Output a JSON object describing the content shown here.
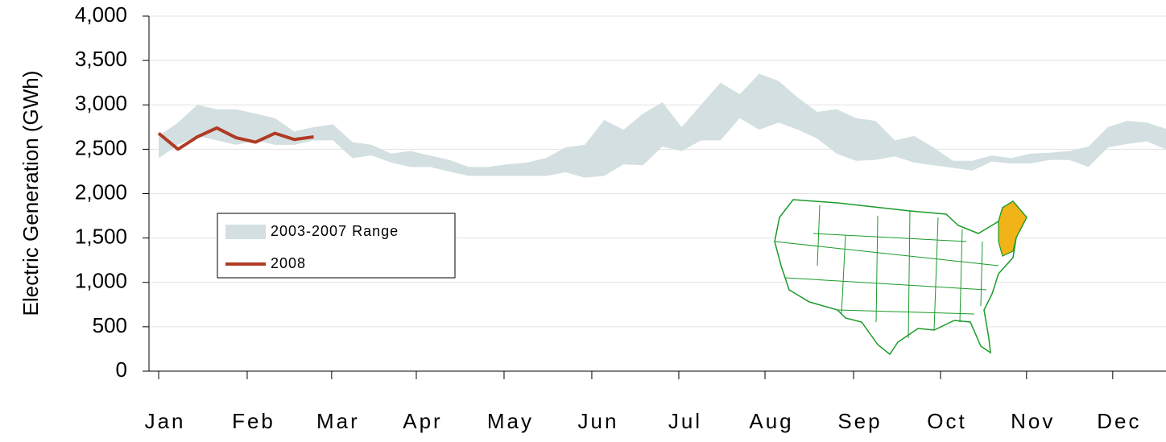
{
  "chart_data": {
    "type": "range-line",
    "y_label": "Electric Generation (GWh)",
    "x": [
      0,
      1,
      2,
      3,
      4,
      5,
      6,
      7,
      8,
      9,
      10,
      11,
      12,
      13,
      14,
      15,
      16,
      17,
      18,
      19,
      20,
      21,
      22,
      23,
      24,
      25,
      26,
      27,
      28,
      29,
      30,
      31,
      32,
      33,
      34,
      35,
      36,
      37,
      38,
      39,
      40,
      41,
      42,
      43,
      44,
      45,
      46,
      47,
      48,
      49,
      50,
      51,
      52
    ],
    "xlim": [
      -0.5,
      52
    ],
    "xticks": [
      {
        "value": 0,
        "label": "Jan"
      },
      {
        "value": 4.57,
        "label": "Feb"
      },
      {
        "value": 8.93,
        "label": "Mar"
      },
      {
        "value": 13.3,
        "label": "Apr"
      },
      {
        "value": 17.83,
        "label": "May"
      },
      {
        "value": 22.36,
        "label": "Jun"
      },
      {
        "value": 26.85,
        "label": "Jul"
      },
      {
        "value": 31.3,
        "label": "Aug"
      },
      {
        "value": 35.87,
        "label": "Sep"
      },
      {
        "value": 40.36,
        "label": "Oct"
      },
      {
        "value": 44.8,
        "label": "Nov"
      },
      {
        "value": 49.25,
        "label": "Dec"
      }
    ],
    "ylim": [
      0,
      4000
    ],
    "yticks": [
      0,
      500,
      {
        "value": 1000,
        "label": "1,000"
      },
      {
        "value": 1500,
        "label": "1,500"
      },
      {
        "value": 2000,
        "label": "2,000"
      },
      {
        "value": 2500,
        "label": "2,500"
      },
      {
        "value": 3000,
        "label": "3,000"
      },
      {
        "value": 3500,
        "label": "3,500"
      },
      {
        "value": 4000,
        "label": "4,000"
      }
    ],
    "grid": true,
    "series": [
      {
        "name": "2003-2007 Range",
        "type": "range",
        "color": "#d3dfe0",
        "high": [
          2650,
          2800,
          3000,
          2950,
          2950,
          2900,
          2850,
          2700,
          2750,
          2780,
          2580,
          2550,
          2450,
          2480,
          2430,
          2380,
          2300,
          2300,
          2330,
          2350,
          2400,
          2520,
          2550,
          2830,
          2720,
          2900,
          3030,
          2750,
          3000,
          3250,
          3120,
          3350,
          3270,
          3080,
          2920,
          2950,
          2850,
          2820,
          2600,
          2650,
          2520,
          2370,
          2370,
          2430,
          2400,
          2450,
          2460,
          2480,
          2530,
          2750,
          2820,
          2800,
          2730
        ],
        "low": [
          2400,
          2550,
          2650,
          2600,
          2550,
          2600,
          2550,
          2550,
          2600,
          2600,
          2400,
          2430,
          2350,
          2300,
          2300,
          2250,
          2200,
          2200,
          2200,
          2200,
          2200,
          2240,
          2180,
          2200,
          2330,
          2320,
          2530,
          2480,
          2600,
          2600,
          2850,
          2720,
          2800,
          2720,
          2620,
          2450,
          2370,
          2380,
          2420,
          2350,
          2320,
          2290,
          2260,
          2360,
          2340,
          2340,
          2380,
          2380,
          2300,
          2520,
          2560,
          2590,
          2500
        ]
      },
      {
        "name": "2008",
        "type": "line",
        "color": "#b03a23",
        "values": [
          2680,
          2500,
          2640,
          2740,
          2630,
          2580,
          2680,
          2610,
          2640,
          null,
          null,
          null,
          null,
          null,
          null,
          null,
          null,
          null,
          null,
          null,
          null,
          null,
          null,
          null,
          null,
          null,
          null,
          null,
          null,
          null,
          null,
          null,
          null,
          null,
          null,
          null,
          null,
          null,
          null,
          null,
          null,
          null,
          null,
          null,
          null,
          null,
          null,
          null,
          null,
          null,
          null,
          null,
          null
        ]
      }
    ]
  }
}
